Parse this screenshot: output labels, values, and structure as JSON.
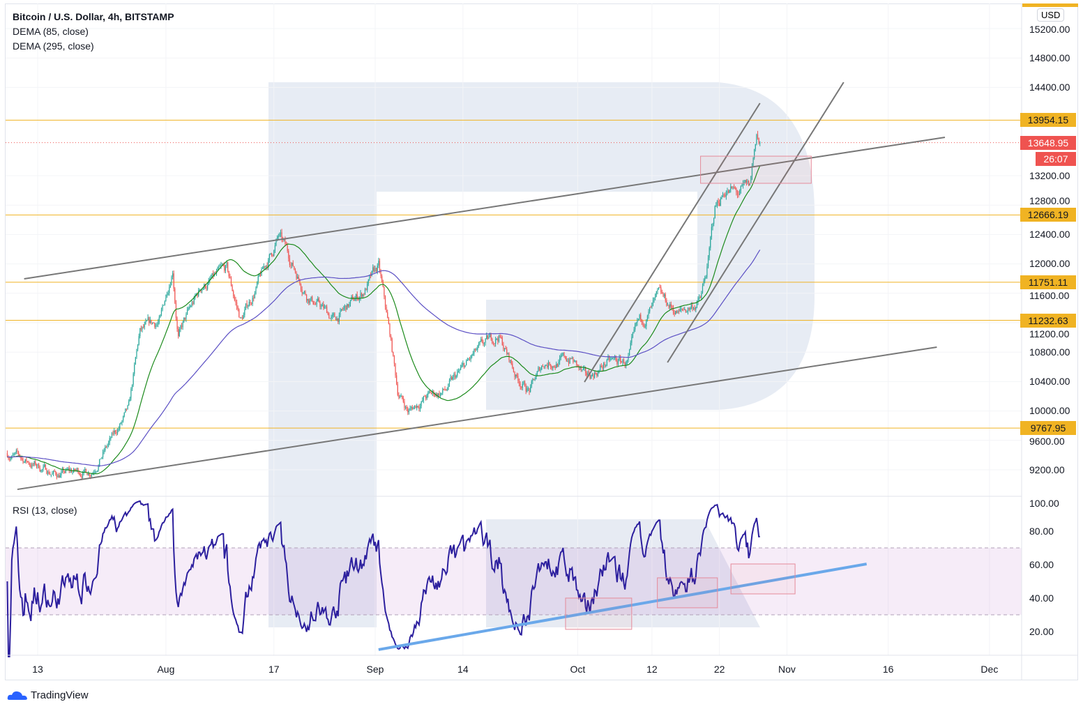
{
  "header": {
    "title": "Bitcoin / U.S. Dollar, 4h, BITSTAMP",
    "ind1": "DEMA (85, close)",
    "ind2": "DEMA (295, close)",
    "currency": "USD"
  },
  "rsi_pane": {
    "title": "RSI (13, close)"
  },
  "footer": {
    "brand": "TradingView"
  },
  "colors": {
    "up": "#26a69a",
    "down": "#ef5350",
    "level": "#f0b323",
    "dema_fast": "#1b8a1b",
    "dema_slow": "#5b4fc4",
    "rsi": "#2c1f9e",
    "rsi_trend": "#6aa8ea",
    "trend": "#777777",
    "last": "#ef5350"
  },
  "chart_data": {
    "type": "candlestick",
    "title": "Bitcoin / U.S. Dollar, 4h, BITSTAMP",
    "price_axis": {
      "range": [
        9000,
        15300
      ],
      "ticks": [
        "9200.00",
        "9600.00",
        "10000.00",
        "10400.00",
        "10800.00",
        "11200.00",
        "11600.00",
        "12000.00",
        "12400.00",
        "12800.00",
        "13200.00",
        "14400.00",
        "14800.00",
        "15200.00"
      ]
    },
    "rsi_axis": {
      "range": [
        0,
        100
      ],
      "ticks": [
        "20.00",
        "40.00",
        "60.00",
        "80.00",
        "100.00"
      ],
      "band": [
        30,
        70
      ]
    },
    "time_axis": {
      "labels": [
        {
          "day": 0,
          "text": "13"
        },
        {
          "day": 19,
          "text": "Aug"
        },
        {
          "day": 35,
          "text": "17"
        },
        {
          "day": 50,
          "text": "Sep"
        },
        {
          "day": 63,
          "text": "14"
        },
        {
          "day": 80,
          "text": "Oct"
        },
        {
          "day": 91,
          "text": "12"
        },
        {
          "day": 101,
          "text": "22"
        },
        {
          "day": 111,
          "text": "Nov"
        },
        {
          "day": 126,
          "text": "16"
        },
        {
          "day": 141,
          "text": "Dec"
        }
      ],
      "unit": "days since Jul 13"
    },
    "price_path": [
      [
        -4.5,
        9428
      ],
      [
        2.7,
        9143
      ],
      [
        7.9,
        9190
      ],
      [
        11,
        9617
      ],
      [
        13.5,
        9996
      ],
      [
        15.1,
        11039
      ],
      [
        18.2,
        11228
      ],
      [
        20,
        11987
      ],
      [
        20.8,
        11039
      ],
      [
        24.4,
        11700
      ],
      [
        28,
        11892
      ],
      [
        30.1,
        11228
      ],
      [
        33.2,
        11844
      ],
      [
        35.7,
        12366
      ],
      [
        39.9,
        11607
      ],
      [
        44,
        11228
      ],
      [
        48.1,
        11607
      ],
      [
        50.5,
        11939
      ],
      [
        52.3,
        10944
      ],
      [
        53.3,
        10280
      ],
      [
        54.9,
        9996
      ],
      [
        57.4,
        10186
      ],
      [
        60.5,
        10280
      ],
      [
        64.7,
        10754
      ],
      [
        68.3,
        11039
      ],
      [
        70.9,
        10470
      ],
      [
        72.9,
        10280
      ],
      [
        75,
        10659
      ],
      [
        79.1,
        10707
      ],
      [
        81.2,
        10422
      ],
      [
        84.3,
        10659
      ],
      [
        87.4,
        10659
      ],
      [
        88.9,
        11133
      ],
      [
        92,
        11513
      ],
      [
        95.1,
        11323
      ],
      [
        98.2,
        11513
      ],
      [
        99.3,
        11987
      ],
      [
        100.3,
        12745
      ],
      [
        101.9,
        13030
      ],
      [
        103.9,
        12935
      ],
      [
        105.5,
        13030
      ],
      [
        106.5,
        13788
      ],
      [
        107,
        13648.95
      ]
    ],
    "levels": [
      {
        "price": 13954.15,
        "label": "13954.15"
      },
      {
        "price": 12666.19,
        "label": "12666.19"
      },
      {
        "price": 11751.11,
        "label": "11751.11"
      },
      {
        "price": 11232.63,
        "label": "11232.63"
      },
      {
        "price": 9767.95,
        "label": "9767.95"
      }
    ],
    "last_price": {
      "price": 13648.95,
      "label": "13648.95",
      "countdown": "26:07"
    },
    "trendlines": [
      [
        [
          -2,
          11797
        ],
        [
          134.4,
          13721
        ]
      ],
      [
        [
          -3,
          8934
        ],
        [
          133.2,
          10868
        ]
      ],
      [
        [
          81,
          10394
        ],
        [
          107,
          14186
        ]
      ],
      [
        [
          93.3,
          10660
        ],
        [
          119.4,
          14470
        ]
      ]
    ],
    "price_boxes": [
      [
        [
          98.2,
          13465
        ],
        [
          114.6,
          13096
        ]
      ]
    ],
    "rsi_trendline": [
      [
        50.5,
        9.2
      ],
      [
        122.8,
        60.4
      ]
    ],
    "rsi_boxes": [
      [
        [
          78.2,
          40
        ],
        [
          88,
          21.3
        ]
      ],
      [
        [
          91.8,
          52.1
        ],
        [
          100.7,
          34.2
        ]
      ],
      [
        [
          102.7,
          60.4
        ],
        [
          112.2,
          42.5
        ]
      ]
    ]
  }
}
